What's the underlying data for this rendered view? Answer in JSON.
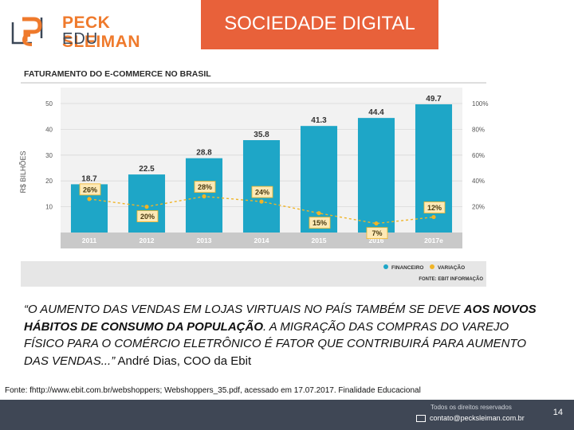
{
  "header": {
    "logo_name": "PECK SLEIMAN",
    "logo_sub": "EDU",
    "title": "SOCIEDADE DIGITAL"
  },
  "colors": {
    "accent": "#e8613a",
    "bar": "#1ea6c7",
    "variation": "#f0b426",
    "footer": "#3f4755"
  },
  "chart_data": {
    "type": "bar",
    "title": "FATURAMENTO DO E-COMMERCE NO BRASIL",
    "ylabel": "R$ BILHÕES",
    "ylim": [
      0,
      50
    ],
    "yticks": [
      "50",
      "40",
      "30",
      "20",
      "10"
    ],
    "y2ticks": [
      "100%",
      "80%",
      "60%",
      "40%",
      "20%"
    ],
    "categories": [
      "2011",
      "2012",
      "2013",
      "2014",
      "2015",
      "2016",
      "2017e"
    ],
    "series": [
      {
        "name": "FINANCEIRO",
        "values": [
          18.7,
          22.5,
          28.8,
          35.8,
          41.3,
          44.4,
          49.7
        ],
        "labels": [
          "18.7",
          "22.5",
          "28.8",
          "35.8",
          "41.3",
          "44.4",
          "49.7"
        ]
      },
      {
        "name": "VARIAÇÃO",
        "values": [
          26,
          20,
          28,
          24,
          15,
          7,
          12
        ],
        "labels": [
          "26%",
          "20%",
          "28%",
          "24%",
          "15%",
          "7%",
          "12%"
        ]
      }
    ],
    "source": "FONTE: EBIT INFORMAÇÃO",
    "legend": "bottom-right"
  },
  "quote": {
    "part1": "“O AUMENTO DAS VENDAS EM LOJAS VIRTUAIS NO PAÍS TAMBÉM SE DEVE ",
    "bold": "AOS NOVOS HÁBITOS DE CONSUMO DA POPULAÇÃO",
    "part2": ". A MIGRAÇÃO DAS COMPRAS DO VAREJO FÍSICO PARA O COMÉRCIO ELETRÔNICO É FATOR QUE CONTRIBUIRÁ PARA AUMENTO DAS VENDAS...”",
    "author": " André Dias, COO da Ebit"
  },
  "source_note": "Fonte: fhttp://www.ebit.com.br/webshoppers; Webshoppers_35.pdf, acessado em 17.07.2017. Finalidade Educacional",
  "footer": {
    "rights": "Todos os direitos reservados",
    "email": "contato@pecksleiman.com.br",
    "page": "14"
  }
}
